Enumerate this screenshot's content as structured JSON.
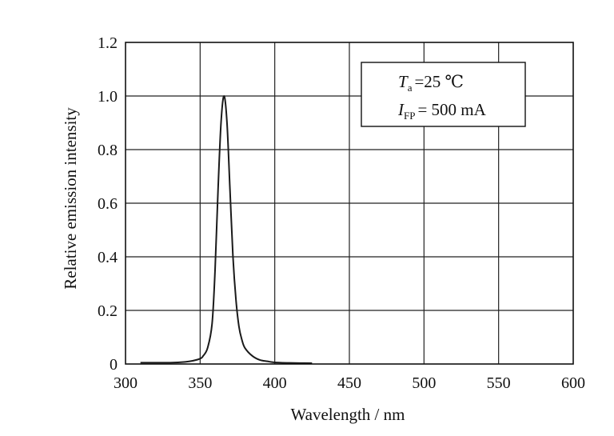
{
  "chart_data": {
    "type": "line",
    "xlabel": "Wavelength / nm",
    "ylabel": "Relative emission intensity",
    "xlim": [
      300,
      600
    ],
    "ylim": [
      0,
      1.2
    ],
    "x_ticks": [
      300,
      350,
      400,
      450,
      500,
      550,
      600
    ],
    "x_tick_labels": [
      "300",
      "350",
      "400",
      "450",
      "500",
      "550",
      "600"
    ],
    "y_ticks": [
      0,
      0.2,
      0.4,
      0.6,
      0.8,
      1.0,
      1.2
    ],
    "y_tick_labels": [
      "0",
      "0.2",
      "0.4",
      "0.6",
      "0.8",
      "1.0",
      "1.2"
    ],
    "grid": true,
    "legend_position": "top-right",
    "annotation": {
      "line1": {
        "symbol": "T",
        "subscript": "a",
        "text": "=25 ℃"
      },
      "line2": {
        "symbol": "I",
        "subscript": "FP",
        "text": "= 500 mA"
      }
    },
    "series": [
      {
        "x": [
          310,
          320,
          330,
          340,
          345,
          350,
          352,
          355,
          358,
          360,
          362,
          364,
          366,
          368,
          370,
          372,
          374,
          376,
          378,
          380,
          385,
          390,
          395,
          400,
          410,
          425
        ],
        "y": [
          0.005,
          0.005,
          0.005,
          0.008,
          0.012,
          0.02,
          0.03,
          0.06,
          0.15,
          0.35,
          0.65,
          0.9,
          1.0,
          0.9,
          0.65,
          0.4,
          0.24,
          0.14,
          0.09,
          0.06,
          0.03,
          0.015,
          0.01,
          0.006,
          0.004,
          0.003
        ]
      }
    ],
    "colors": {
      "line": "#1a1a1a",
      "grid": "#222222",
      "frame": "#111111"
    }
  }
}
